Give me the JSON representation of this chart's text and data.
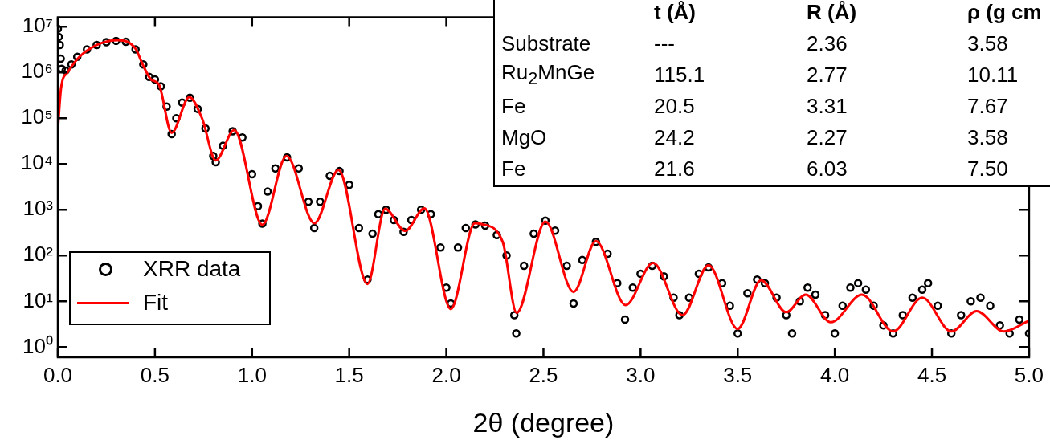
{
  "chart_data": {
    "type": "scatter",
    "xlabel": "2θ (degree)",
    "xlim": [
      0,
      5
    ],
    "xticks": [
      {
        "value": 0,
        "label": "0.0"
      },
      {
        "value": 0.5,
        "label": "0.5"
      },
      {
        "value": 1,
        "label": "1.0"
      },
      {
        "value": 1.5,
        "label": "1.5"
      },
      {
        "value": 2,
        "label": "2.0"
      },
      {
        "value": 2.5,
        "label": "2.5"
      },
      {
        "value": 3,
        "label": "3.0"
      },
      {
        "value": 3.5,
        "label": "3.5"
      },
      {
        "value": 4,
        "label": "4.0"
      },
      {
        "value": 4.5,
        "label": "4.5"
      },
      {
        "value": 5,
        "label": "5.0"
      }
    ],
    "ylim": [
      0.6,
      16000000
    ],
    "yticks": [
      {
        "value": 1,
        "label": "10⁰"
      },
      {
        "value": 10,
        "label": "10¹"
      },
      {
        "value": 100,
        "label": "10²"
      },
      {
        "value": 1000,
        "label": "10³"
      },
      {
        "value": 10000,
        "label": "10⁴"
      },
      {
        "value": 100000,
        "label": "10⁵"
      },
      {
        "value": 1000000,
        "label": "10⁶"
      },
      {
        "value": 10000000,
        "label": "10⁷"
      }
    ],
    "log": "y",
    "grid": false,
    "legend": "bottom left",
    "annotations": [
      "t (Å)",
      "R (Å)",
      "ρ (g cm",
      "Substrate",
      "---",
      "2.36",
      "3.58",
      "Ru$_{2}$MnGe",
      "115.1",
      "2.77",
      "10.11",
      "Fe",
      "20.5",
      "3.31",
      "7.67",
      "MgO",
      "24.2",
      "2.27",
      "3.58",
      "Fe",
      "21.6",
      "6.03",
      "7.50"
    ],
    "series": [
      {
        "name": "XRR data",
        "type": "scatter",
        "marker": "circle",
        "color": "#000000",
        "x": [
          0.0,
          0.005,
          0.01,
          0.015,
          0.02,
          0.04,
          0.07,
          0.1,
          0.15,
          0.2,
          0.25,
          0.3,
          0.35,
          0.4,
          0.44,
          0.47,
          0.5,
          0.53,
          0.56,
          0.586,
          0.61,
          0.64,
          0.68,
          0.72,
          0.76,
          0.8,
          0.813,
          0.85,
          0.9,
          0.95,
          1.0,
          1.03,
          1.053,
          1.08,
          1.12,
          1.18,
          1.24,
          1.29,
          1.32,
          1.35,
          1.4,
          1.45,
          1.5,
          1.55,
          1.594,
          1.62,
          1.65,
          1.69,
          1.73,
          1.78,
          1.82,
          1.87,
          1.92,
          1.97,
          2.0,
          2.023,
          2.06,
          2.1,
          2.15,
          2.2,
          2.26,
          2.31,
          2.35,
          2.36,
          2.4,
          2.45,
          2.51,
          2.56,
          2.62,
          2.655,
          2.7,
          2.77,
          2.83,
          2.88,
          2.92,
          2.96,
          3.0,
          3.06,
          3.12,
          3.17,
          3.2,
          3.25,
          3.3,
          3.35,
          3.42,
          3.46,
          3.5,
          3.55,
          3.6,
          3.64,
          3.7,
          3.75,
          3.78,
          3.82,
          3.86,
          3.9,
          3.95,
          4.0,
          4.04,
          4.08,
          4.12,
          4.16,
          4.2,
          4.25,
          4.3,
          4.35,
          4.4,
          4.45,
          4.48,
          4.53,
          4.6,
          4.65,
          4.7,
          4.75,
          4.8,
          4.85,
          4.9,
          4.95,
          5.0
        ],
        "values": [
          9000000,
          6000000,
          4000000,
          2000000,
          1200000,
          1100000,
          1500000,
          2200000,
          3200000,
          4000000,
          4600000,
          4900000,
          4700000,
          3200000,
          1500000,
          800000,
          700000,
          500000,
          180000,
          45000,
          100000,
          220000,
          280000,
          160000,
          60000,
          15000,
          11000,
          25000,
          52000,
          38000,
          6000,
          1200,
          500,
          2500,
          8000,
          14000,
          8000,
          1500,
          400,
          1500,
          5500,
          7000,
          3500,
          400,
          30,
          300,
          800,
          1000,
          600,
          330,
          600,
          1000,
          800,
          150,
          20,
          9,
          150,
          400,
          480,
          450,
          280,
          100,
          5,
          2,
          60,
          300,
          580,
          350,
          60,
          9,
          80,
          200,
          110,
          25,
          4,
          20,
          40,
          60,
          35,
          12,
          5,
          12,
          40,
          55,
          25,
          8,
          2,
          15,
          30,
          25,
          12,
          5,
          2,
          10,
          20,
          14,
          5,
          2,
          8,
          20,
          25,
          18,
          8,
          3,
          2,
          5,
          12,
          18,
          25,
          8,
          2,
          5,
          10,
          12,
          8,
          3,
          2,
          4,
          2
        ]
      },
      {
        "name": "Fit",
        "type": "line",
        "color": "#ff0000",
        "x": [
          0.0,
          0.017,
          0.05,
          0.13,
          0.31,
          0.4,
          0.44,
          0.48,
          0.52,
          0.586,
          0.677,
          0.743,
          0.813,
          0.908,
          1.053,
          1.177,
          1.321,
          1.445,
          1.594,
          1.685,
          1.788,
          1.887,
          2.023,
          2.147,
          2.18,
          2.29,
          2.362,
          2.51,
          2.655,
          2.77,
          2.923,
          3.064,
          3.216,
          3.35,
          3.5,
          3.62,
          3.75,
          3.85,
          3.98,
          4.14,
          4.3,
          4.45,
          4.6,
          4.73,
          4.87,
          5.0
        ],
        "values": [
          56000,
          470000,
          1000000,
          2600000,
          5100000,
          3300000,
          1400000,
          700000,
          550000,
          48000,
          290000,
          98000,
          12000,
          55000,
          470,
          15000,
          510,
          7400,
          24,
          1050,
          345,
          1080,
          6.8,
          510,
          490,
          200,
          5.6,
          550,
          16,
          208,
          8.3,
          69,
          5.0,
          62,
          2.5,
          29,
          5.8,
          14,
          3.5,
          14,
          2.2,
          12,
          2.2,
          6.1,
          2.2,
          3.8
        ]
      }
    ]
  }
}
